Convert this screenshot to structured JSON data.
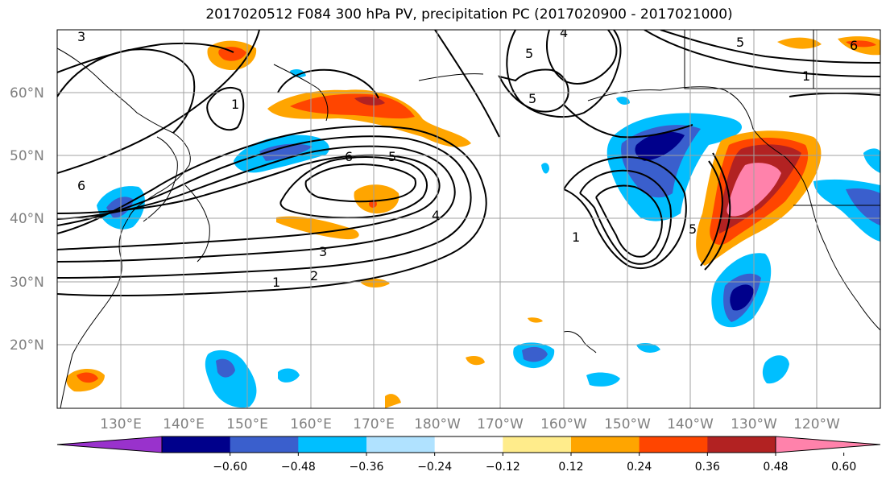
{
  "title": "2017020512 F084 300 hPa PV, precipitation PC (2017020900 - 2017021000)",
  "map": {
    "lat_labels": [
      "60°N",
      "50°N",
      "40°N",
      "30°N",
      "20°N"
    ],
    "lon_labels": [
      "130°E",
      "140°E",
      "150°E",
      "160°E",
      "170°E",
      "180°W",
      "170°W",
      "160°W",
      "150°W",
      "140°W",
      "130°W",
      "120°W"
    ],
    "pv_contour_labels": [
      "1",
      "2",
      "3",
      "4",
      "5",
      "6"
    ]
  },
  "colorbar": {
    "tick_labels": [
      "−0.60",
      "−0.48",
      "−0.36",
      "−0.24",
      "−0.12",
      "0.12",
      "0.24",
      "0.36",
      "0.48",
      "0.60"
    ],
    "colors": [
      "#9932cc",
      "#00008b",
      "#3a5fcd",
      "#00bfff",
      "#b0e2ff",
      "#ffffff",
      "#ffec8b",
      "#ffa500",
      "#ff4500",
      "#b22222",
      "#ff82ab"
    ]
  }
}
